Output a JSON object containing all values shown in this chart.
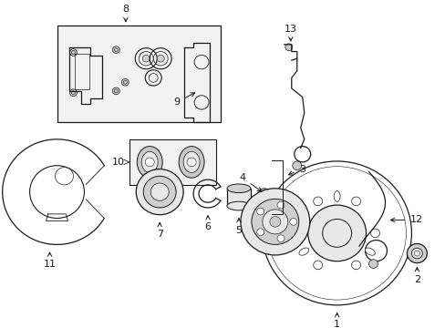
{
  "background_color": "#ffffff",
  "fig_width": 4.89,
  "fig_height": 3.6,
  "dpi": 100,
  "line_color": "#1a1a1a",
  "fill_light": "#e8e8e8",
  "fill_mid": "#d0d0d0",
  "fill_box": "#f2f2f2"
}
